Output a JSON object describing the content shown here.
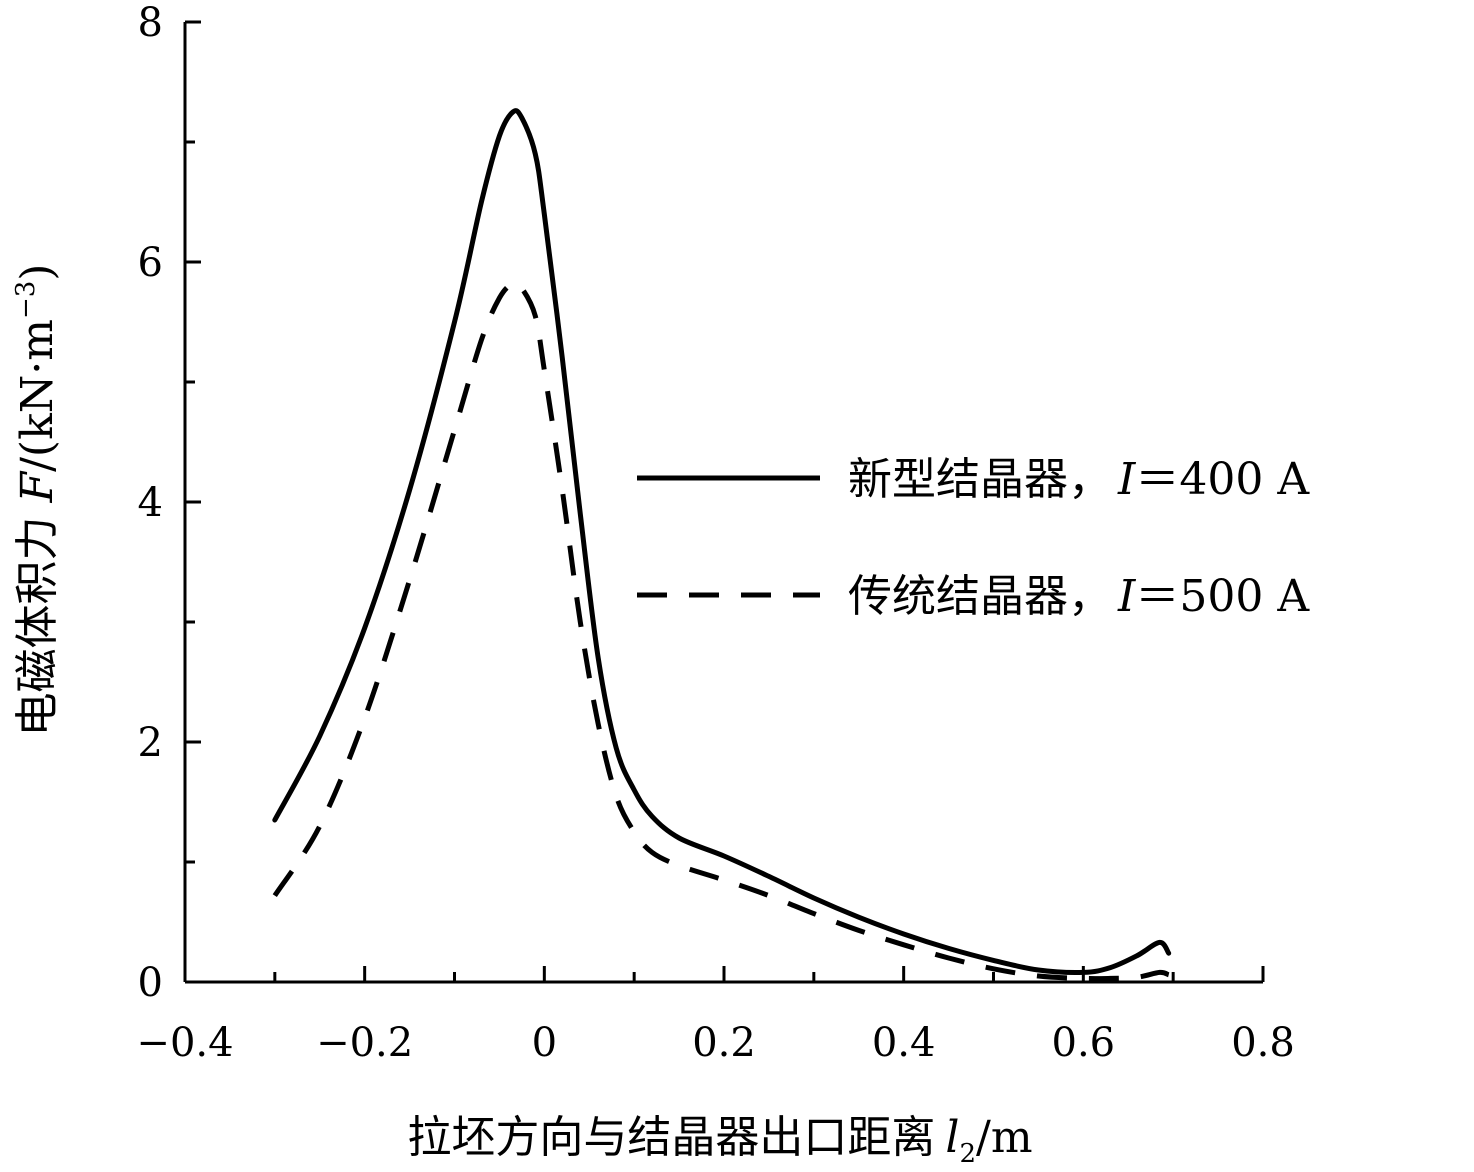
{
  "chart_data": {
    "type": "line",
    "title": "",
    "xlabel": {
      "prefix": "拉坯方向与结晶器出口距离",
      "symbol": "l",
      "subscript": "2",
      "unit": "/m"
    },
    "ylabel": {
      "prefix": "电磁体积力",
      "symbol": "F",
      "unit": "/(kN·m",
      "superscript": "−3",
      "close": ")"
    },
    "xlim": [
      -0.4,
      0.8
    ],
    "ylim": [
      0,
      8
    ],
    "x_ticks": [
      -0.4,
      -0.2,
      0,
      0.2,
      0.4,
      0.6,
      0.8
    ],
    "x_tick_labels": [
      "−0.4",
      "−0.2",
      "0",
      "0.2",
      "0.4",
      "0.6",
      "0.8"
    ],
    "y_ticks": [
      0,
      2,
      4,
      6,
      8
    ],
    "y_tick_labels": [
      "0",
      "2",
      "4",
      "6",
      "8"
    ],
    "grid": false,
    "legend_position": "right",
    "series": [
      {
        "name": "新型结晶器，I＝400 A",
        "legend_prefix": "新型结晶器，",
        "legend_symbol": "I",
        "legend_value": "＝400 A",
        "style": "solid",
        "color": "#000000",
        "points": [
          [
            -0.3,
            1.35
          ],
          [
            -0.25,
            2.05
          ],
          [
            -0.2,
            2.95
          ],
          [
            -0.15,
            4.1
          ],
          [
            -0.1,
            5.5
          ],
          [
            -0.07,
            6.5
          ],
          [
            -0.05,
            7.05
          ],
          [
            -0.035,
            7.25
          ],
          [
            -0.025,
            7.2
          ],
          [
            -0.01,
            6.9
          ],
          [
            0.0,
            6.4
          ],
          [
            0.02,
            5.2
          ],
          [
            0.04,
            3.9
          ],
          [
            0.06,
            2.7
          ],
          [
            0.08,
            1.95
          ],
          [
            0.1,
            1.6
          ],
          [
            0.12,
            1.38
          ],
          [
            0.15,
            1.2
          ],
          [
            0.2,
            1.05
          ],
          [
            0.25,
            0.88
          ],
          [
            0.3,
            0.7
          ],
          [
            0.35,
            0.54
          ],
          [
            0.4,
            0.4
          ],
          [
            0.45,
            0.28
          ],
          [
            0.5,
            0.18
          ],
          [
            0.55,
            0.1
          ],
          [
            0.6,
            0.08
          ],
          [
            0.63,
            0.12
          ],
          [
            0.66,
            0.22
          ],
          [
            0.685,
            0.33
          ],
          [
            0.695,
            0.24
          ]
        ]
      },
      {
        "name": "传统结晶器，I＝500 A",
        "legend_prefix": "传统结晶器，",
        "legend_symbol": "I",
        "legend_value": "＝500 A",
        "style": "dashed",
        "color": "#000000",
        "points": [
          [
            -0.3,
            0.72
          ],
          [
            -0.25,
            1.3
          ],
          [
            -0.2,
            2.2
          ],
          [
            -0.15,
            3.35
          ],
          [
            -0.1,
            4.6
          ],
          [
            -0.07,
            5.35
          ],
          [
            -0.05,
            5.7
          ],
          [
            -0.035,
            5.82
          ],
          [
            -0.025,
            5.78
          ],
          [
            -0.01,
            5.55
          ],
          [
            0.0,
            5.1
          ],
          [
            0.02,
            4.1
          ],
          [
            0.04,
            3.0
          ],
          [
            0.06,
            2.15
          ],
          [
            0.08,
            1.55
          ],
          [
            0.1,
            1.25
          ],
          [
            0.12,
            1.08
          ],
          [
            0.15,
            0.97
          ],
          [
            0.2,
            0.85
          ],
          [
            0.25,
            0.72
          ],
          [
            0.3,
            0.57
          ],
          [
            0.35,
            0.43
          ],
          [
            0.4,
            0.31
          ],
          [
            0.45,
            0.2
          ],
          [
            0.5,
            0.11
          ],
          [
            0.55,
            0.05
          ],
          [
            0.6,
            0.03
          ],
          [
            0.63,
            0.03
          ],
          [
            0.66,
            0.04
          ],
          [
            0.685,
            0.08
          ],
          [
            0.695,
            0.06
          ]
        ]
      }
    ]
  }
}
